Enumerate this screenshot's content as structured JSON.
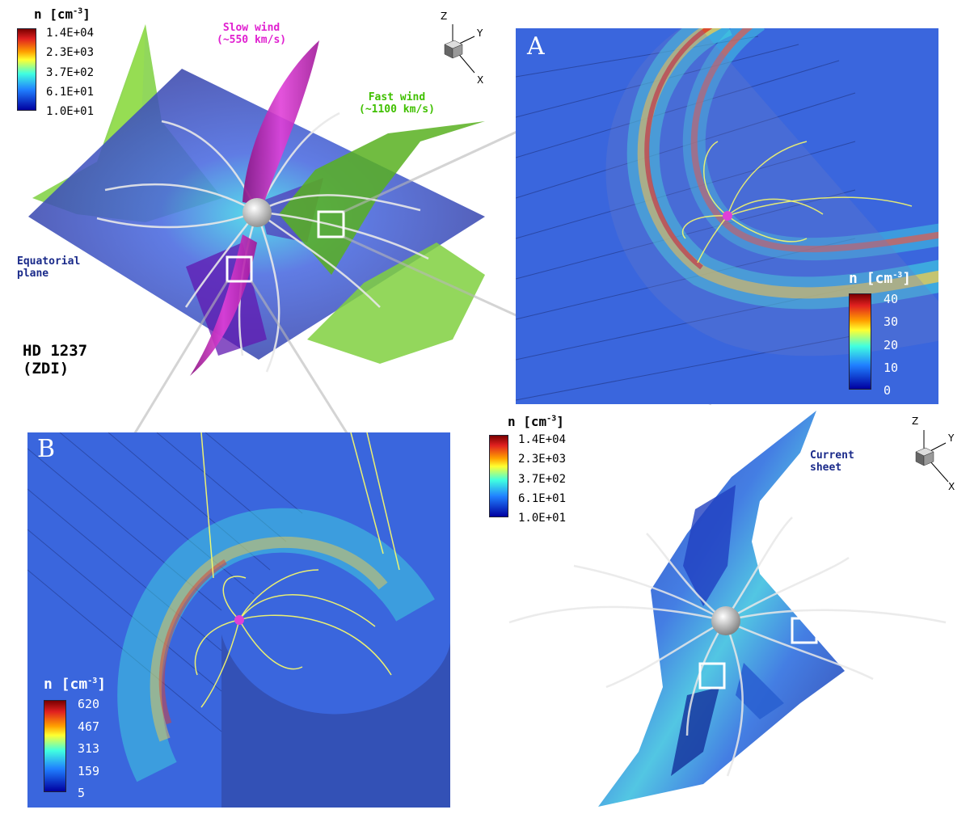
{
  "main_view": {
    "colorbar": {
      "title": "n [cm",
      "exponent": "-3",
      "title_close": "]",
      "ticks": [
        "1.4E+04",
        "2.3E+03",
        "3.7E+02",
        "6.1E+01",
        "1.0E+01"
      ]
    },
    "labels": {
      "slow_wind": "Slow wind",
      "slow_wind_speed": "(~550 km/s)",
      "fast_wind": "Fast wind",
      "fast_wind_speed": "(~1100 km/s)",
      "equatorial": "Equatorial",
      "plane": "plane",
      "star_name": "HD 1237",
      "star_method": "(ZDI)"
    },
    "axes": {
      "z": "Z",
      "y": "Y",
      "x": "X"
    }
  },
  "panel_a": {
    "letter": "A",
    "colorbar": {
      "title": "n [cm",
      "exponent": "-3",
      "title_close": "]",
      "ticks": [
        "40",
        "30",
        "20",
        "10",
        "0"
      ]
    }
  },
  "panel_b": {
    "letter": "B",
    "colorbar": {
      "title": "n [cm",
      "exponent": "-3",
      "title_close": "]",
      "ticks": [
        "620",
        "467",
        "313",
        "159",
        "5"
      ]
    }
  },
  "current_sheet_view": {
    "colorbar": {
      "title": "n [cm",
      "exponent": "-3",
      "title_close": "]",
      "ticks": [
        "1.4E+04",
        "2.3E+03",
        "3.7E+02",
        "6.1E+01",
        "1.0E+01"
      ]
    },
    "labels": {
      "current": "Current",
      "sheet": "sheet"
    },
    "axes": {
      "z": "Z",
      "y": "Y",
      "x": "X"
    }
  },
  "colors": {
    "slow_wind": "#e020d0",
    "fast_wind": "#40c000",
    "equatorial": "#1a2a8a",
    "panel_bg": "#3a66dd",
    "field_lines": "#ffff66"
  }
}
